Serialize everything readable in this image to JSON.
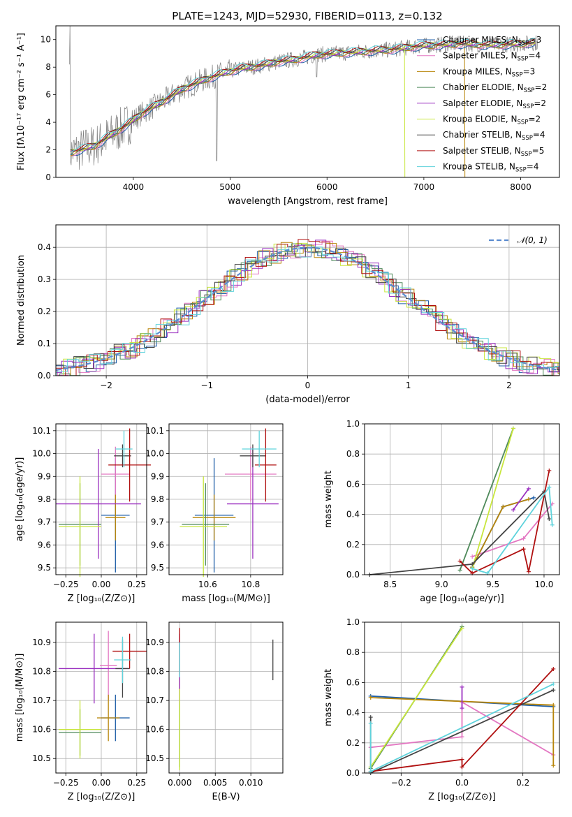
{
  "figure_title": "PLATE=1243, MJD=52930, FIBERID=0113, z=0.132",
  "legend_models": [
    {
      "name": "Chabrier MILES",
      "nssp": 3,
      "color": "#1f5fa8"
    },
    {
      "name": "Salpeter MILES",
      "nssp": 4,
      "color": "#e377c2"
    },
    {
      "name": "Kroupa MILES",
      "nssp": 3,
      "color": "#b8860b"
    },
    {
      "name": "Chabrier ELODIE",
      "nssp": 2,
      "color": "#4f8a5b"
    },
    {
      "name": "Salpeter ELODIE",
      "nssp": 2,
      "color": "#9b30c0"
    },
    {
      "name": "Kroupa ELODIE",
      "nssp": 2,
      "color": "#c8e63c"
    },
    {
      "name": "Chabrier STELIB",
      "nssp": 4,
      "color": "#444444"
    },
    {
      "name": "Salpeter STELIB",
      "nssp": 5,
      "color": "#b01010"
    },
    {
      "name": "Kroupa STELIB",
      "nssp": 4,
      "color": "#5fd3dc"
    }
  ],
  "nssp_prefix": "N",
  "nssp_sub": "SSP",
  "spectrum_panel": {
    "xlabel": "wavelength [Angstrom, rest frame]",
    "ylabel": "Flux [fλ10⁻¹⁷ erg cm⁻² s⁻¹ A⁻¹]",
    "xlim": [
      3200,
      8400
    ],
    "ylim": [
      0,
      11
    ],
    "xticks": [
      "4000",
      "5000",
      "6000",
      "7000",
      "8000"
    ],
    "yticks": [
      "0",
      "2",
      "4",
      "6",
      "8",
      "10"
    ],
    "data_color": "#808080",
    "continuum_points": [
      [
        3350,
        1.8
      ],
      [
        3600,
        2.3
      ],
      [
        3800,
        3.2
      ],
      [
        3950,
        3.9
      ],
      [
        4100,
        4.7
      ],
      [
        4300,
        5.5
      ],
      [
        4500,
        6.4
      ],
      [
        4700,
        7.0
      ],
      [
        4900,
        7.5
      ],
      [
        5100,
        7.9
      ],
      [
        5300,
        8.1
      ],
      [
        5500,
        8.4
      ],
      [
        5700,
        8.6
      ],
      [
        5900,
        8.9
      ],
      [
        6100,
        9.0
      ],
      [
        6300,
        9.1
      ],
      [
        6500,
        9.2
      ],
      [
        6700,
        9.3
      ],
      [
        6900,
        9.5
      ],
      [
        7100,
        9.6
      ],
      [
        7400,
        9.7
      ],
      [
        7700,
        9.6
      ],
      [
        8000,
        9.7
      ],
      [
        8200,
        9.8
      ]
    ]
  },
  "residual_panel": {
    "xlabel": "(data-model)/error",
    "ylabel": "Normed distribution",
    "xlim": [
      -2.5,
      2.5
    ],
    "ylim": [
      0,
      0.47
    ],
    "xticks": [
      "−2",
      "−1",
      "0",
      "1",
      "2"
    ],
    "yticks": [
      "0.0",
      "0.1",
      "0.2",
      "0.3",
      "0.4"
    ],
    "normal_label": "𝒩(0, 1)",
    "normal_color": "#5a8bd0"
  },
  "chart_data": [
    {
      "type": "scatter",
      "panel": "age-vs-Z",
      "xlabel": "Z [log₁₀(Z/Z⊙)]",
      "ylabel": "age  [log₁₀(age/yr)]",
      "xlim": [
        -0.32,
        0.32
      ],
      "ylim": [
        9.47,
        10.13
      ],
      "xticks": [
        "−0.25",
        "0.00",
        "0.25"
      ],
      "yticks": [
        "9.5",
        "9.6",
        "9.7",
        "9.8",
        "9.9",
        "10.0",
        "10.1"
      ],
      "points": [
        {
          "model": 0,
          "x": 0.1,
          "y": 9.73,
          "xerr": 0.1,
          "yerr": 0.25
        },
        {
          "model": 1,
          "x": 0.1,
          "y": 9.91,
          "xerr": 0.1,
          "yerr": 0.12
        },
        {
          "model": 2,
          "x": 0.1,
          "y": 9.72,
          "xerr": 0.07,
          "yerr": 0.1
        },
        {
          "model": 3,
          "x": -0.15,
          "y": 9.69,
          "xerr": 0.15,
          "yerr": 0.18
        },
        {
          "model": 4,
          "x": -0.02,
          "y": 9.78,
          "xerr": 0.3,
          "yerr": 0.24
        },
        {
          "model": 5,
          "x": -0.15,
          "y": 9.68,
          "xerr": 0.15,
          "yerr": 0.22
        },
        {
          "model": 6,
          "x": 0.15,
          "y": 9.99,
          "xerr": 0.06,
          "yerr": 0.05
        },
        {
          "model": 7,
          "x": 0.2,
          "y": 9.95,
          "xerr": 0.15,
          "yerr": 0.16
        },
        {
          "model": 8,
          "x": 0.16,
          "y": 10.02,
          "xerr": 0.06,
          "yerr": 0.08
        }
      ]
    },
    {
      "type": "scatter",
      "panel": "age-vs-mass",
      "xlabel": "mass [log₁₀(M/M⊙)]",
      "ylabel": "",
      "xlim": [
        10.42,
        10.95
      ],
      "ylim": [
        9.47,
        10.13
      ],
      "xticks": [
        "10.6",
        "10.8"
      ],
      "yticks": [
        "9.5",
        "9.6",
        "9.7",
        "9.8",
        "9.9",
        "10.0",
        "10.1"
      ],
      "points": [
        {
          "model": 0,
          "x": 10.63,
          "y": 9.73,
          "xerr": 0.09,
          "yerr": 0.25
        },
        {
          "model": 1,
          "x": 10.8,
          "y": 9.91,
          "xerr": 0.12,
          "yerr": 0.12
        },
        {
          "model": 2,
          "x": 10.63,
          "y": 9.72,
          "xerr": 0.1,
          "yerr": 0.1
        },
        {
          "model": 3,
          "x": 10.59,
          "y": 9.69,
          "xerr": 0.11,
          "yerr": 0.18
        },
        {
          "model": 4,
          "x": 10.81,
          "y": 9.78,
          "xerr": 0.12,
          "yerr": 0.24
        },
        {
          "model": 5,
          "x": 10.58,
          "y": 9.68,
          "xerr": 0.11,
          "yerr": 0.22
        },
        {
          "model": 6,
          "x": 10.81,
          "y": 9.99,
          "xerr": 0.06,
          "yerr": 0.05
        },
        {
          "model": 7,
          "x": 10.87,
          "y": 9.95,
          "xerr": 0.05,
          "yerr": 0.16
        },
        {
          "model": 8,
          "x": 10.84,
          "y": 10.02,
          "xerr": 0.08,
          "yerr": 0.08
        }
      ]
    },
    {
      "type": "line",
      "panel": "weight-vs-age",
      "xlabel": "age  [log₁₀(age/yr)]",
      "ylabel": "mass weight",
      "xlim": [
        8.25,
        10.15
      ],
      "ylim": [
        0,
        1
      ],
      "xticks": [
        "8.5",
        "9.0",
        "9.5",
        "10.0"
      ],
      "yticks": [
        "0.0",
        "0.2",
        "0.4",
        "0.6",
        "0.8",
        "1.0"
      ],
      "series": [
        {
          "model": 0,
          "points": [
            [
              9.3,
              0.05
            ],
            [
              9.6,
              0.45
            ],
            [
              9.9,
              0.51
            ]
          ]
        },
        {
          "model": 1,
          "points": [
            [
              9.3,
              0.12
            ],
            [
              9.8,
              0.24
            ],
            [
              10.08,
              0.47
            ]
          ]
        },
        {
          "model": 2,
          "points": [
            [
              9.3,
              0.05
            ],
            [
              9.6,
              0.45
            ],
            [
              9.85,
              0.5
            ]
          ]
        },
        {
          "model": 3,
          "points": [
            [
              9.18,
              0.03
            ],
            [
              9.7,
              0.97
            ]
          ]
        },
        {
          "model": 4,
          "points": [
            [
              9.7,
              0.43
            ],
            [
              9.85,
              0.57
            ]
          ]
        },
        {
          "model": 5,
          "points": [
            [
              9.3,
              0.04
            ],
            [
              9.7,
              0.97
            ]
          ]
        },
        {
          "model": 6,
          "points": [
            [
              8.3,
              0.0
            ],
            [
              9.3,
              0.07
            ],
            [
              10.0,
              0.55
            ],
            [
              10.05,
              0.37
            ]
          ]
        },
        {
          "model": 7,
          "points": [
            [
              9.18,
              0.09
            ],
            [
              9.3,
              0.01
            ],
            [
              9.8,
              0.17
            ],
            [
              9.85,
              0.02
            ],
            [
              10.05,
              0.69
            ]
          ]
        },
        {
          "model": 8,
          "points": [
            [
              9.3,
              0.04
            ],
            [
              9.45,
              0.01
            ],
            [
              10.05,
              0.58
            ],
            [
              10.08,
              0.33
            ]
          ]
        }
      ]
    },
    {
      "type": "scatter",
      "panel": "mass-vs-Z",
      "xlabel": "Z [log₁₀(Z/Z⊙)]",
      "ylabel": "mass [log₁₀(M/M⊙)]",
      "xlim": [
        -0.32,
        0.32
      ],
      "ylim": [
        10.45,
        10.97
      ],
      "xticks": [
        "−0.25",
        "0.00",
        "0.25"
      ],
      "yticks": [
        "10.5",
        "10.6",
        "10.7",
        "10.8",
        "10.9"
      ],
      "points": [
        {
          "model": 0,
          "x": 0.1,
          "y": 10.64,
          "xerr": 0.1,
          "yerr": 0.08
        },
        {
          "model": 1,
          "x": 0.05,
          "y": 10.82,
          "xerr": 0.06,
          "yerr": 0.12
        },
        {
          "model": 2,
          "x": 0.05,
          "y": 10.64,
          "xerr": 0.08,
          "yerr": 0.08
        },
        {
          "model": 3,
          "x": -0.15,
          "y": 10.59,
          "xerr": 0.15,
          "yerr": 0.08
        },
        {
          "model": 4,
          "x": -0.05,
          "y": 10.81,
          "xerr": 0.25,
          "yerr": 0.12
        },
        {
          "model": 5,
          "x": -0.15,
          "y": 10.6,
          "xerr": 0.15,
          "yerr": 0.1
        },
        {
          "model": 6,
          "x": 0.15,
          "y": 10.81,
          "xerr": 0.05,
          "yerr": 0.1
        },
        {
          "model": 7,
          "x": 0.2,
          "y": 10.87,
          "xerr": 0.12,
          "yerr": 0.06
        },
        {
          "model": 8,
          "x": 0.15,
          "y": 10.84,
          "xerr": 0.06,
          "yerr": 0.08
        }
      ]
    },
    {
      "type": "scatter",
      "panel": "mass-vs-ebv",
      "xlabel": "E(B-V)",
      "ylabel": "",
      "xlim": [
        -0.0015,
        0.0145
      ],
      "ylim": [
        10.45,
        10.97
      ],
      "xticks": [
        "0.000",
        "0.005",
        "0.010"
      ],
      "yticks": [
        "10.5",
        "10.6",
        "10.7",
        "10.8",
        "10.9"
      ],
      "points": [
        {
          "model": 0,
          "x": 0.0,
          "y": 10.78,
          "xerr": 0,
          "yerr": 0.12
        },
        {
          "model": 1,
          "x": 0.0,
          "y": 10.82,
          "xerr": 0,
          "yerr": 0.1
        },
        {
          "model": 2,
          "x": 0.0,
          "y": 10.64,
          "xerr": 0,
          "yerr": 0.15
        },
        {
          "model": 3,
          "x": 0.0,
          "y": 10.59,
          "xerr": 0,
          "yerr": 0.12
        },
        {
          "model": 4,
          "x": 0.0,
          "y": 10.81,
          "xerr": 0,
          "yerr": 0.12
        },
        {
          "model": 5,
          "x": 0.0,
          "y": 10.6,
          "xerr": 0,
          "yerr": 0.14
        },
        {
          "model": 6,
          "x": 0.0131,
          "y": 10.84,
          "xerr": 0,
          "yerr": 0.07
        },
        {
          "model": 7,
          "x": 0.0,
          "y": 10.87,
          "xerr": 0,
          "yerr": 0.08
        },
        {
          "model": 8,
          "x": 0.0,
          "y": 10.84,
          "xerr": 0,
          "yerr": 0.06
        }
      ]
    },
    {
      "type": "line",
      "panel": "weight-vs-Z",
      "xlabel": "Z [log₁₀(Z/Z⊙)]",
      "ylabel": "mass weight",
      "xlim": [
        -0.32,
        0.32
      ],
      "ylim": [
        0,
        1
      ],
      "xticks": [
        "−0.2",
        "0.0",
        "0.2"
      ],
      "yticks": [
        "0.0",
        "0.2",
        "0.4",
        "0.6",
        "0.8",
        "1.0"
      ],
      "series": [
        {
          "model": 0,
          "points": [
            [
              -0.3,
              0.51
            ],
            [
              0.3,
              0.44
            ]
          ]
        },
        {
          "model": 1,
          "points": [
            [
              -0.3,
              0.17
            ],
            [
              0.0,
              0.24
            ],
            [
              0.0,
              0.47
            ],
            [
              0.3,
              0.12
            ]
          ]
        },
        {
          "model": 2,
          "points": [
            [
              -0.3,
              0.5
            ],
            [
              0.3,
              0.45
            ],
            [
              0.3,
              0.05
            ]
          ]
        },
        {
          "model": 3,
          "points": [
            [
              -0.3,
              0.03
            ],
            [
              0.0,
              0.97
            ]
          ]
        },
        {
          "model": 4,
          "points": [
            [
              0.0,
              0.43
            ],
            [
              0.0,
              0.57
            ]
          ]
        },
        {
          "model": 5,
          "points": [
            [
              -0.3,
              0.04
            ],
            [
              0.0,
              0.96
            ]
          ]
        },
        {
          "model": 6,
          "points": [
            [
              -0.3,
              0.37
            ],
            [
              -0.3,
              0.0
            ],
            [
              0.3,
              0.55
            ]
          ]
        },
        {
          "model": 7,
          "points": [
            [
              -0.3,
              0.01
            ],
            [
              0.0,
              0.09
            ],
            [
              0.0,
              0.04
            ],
            [
              0.3,
              0.69
            ]
          ]
        },
        {
          "model": 8,
          "points": [
            [
              -0.3,
              0.33
            ],
            [
              -0.3,
              0.01
            ],
            [
              0.3,
              0.59
            ]
          ]
        }
      ]
    }
  ]
}
